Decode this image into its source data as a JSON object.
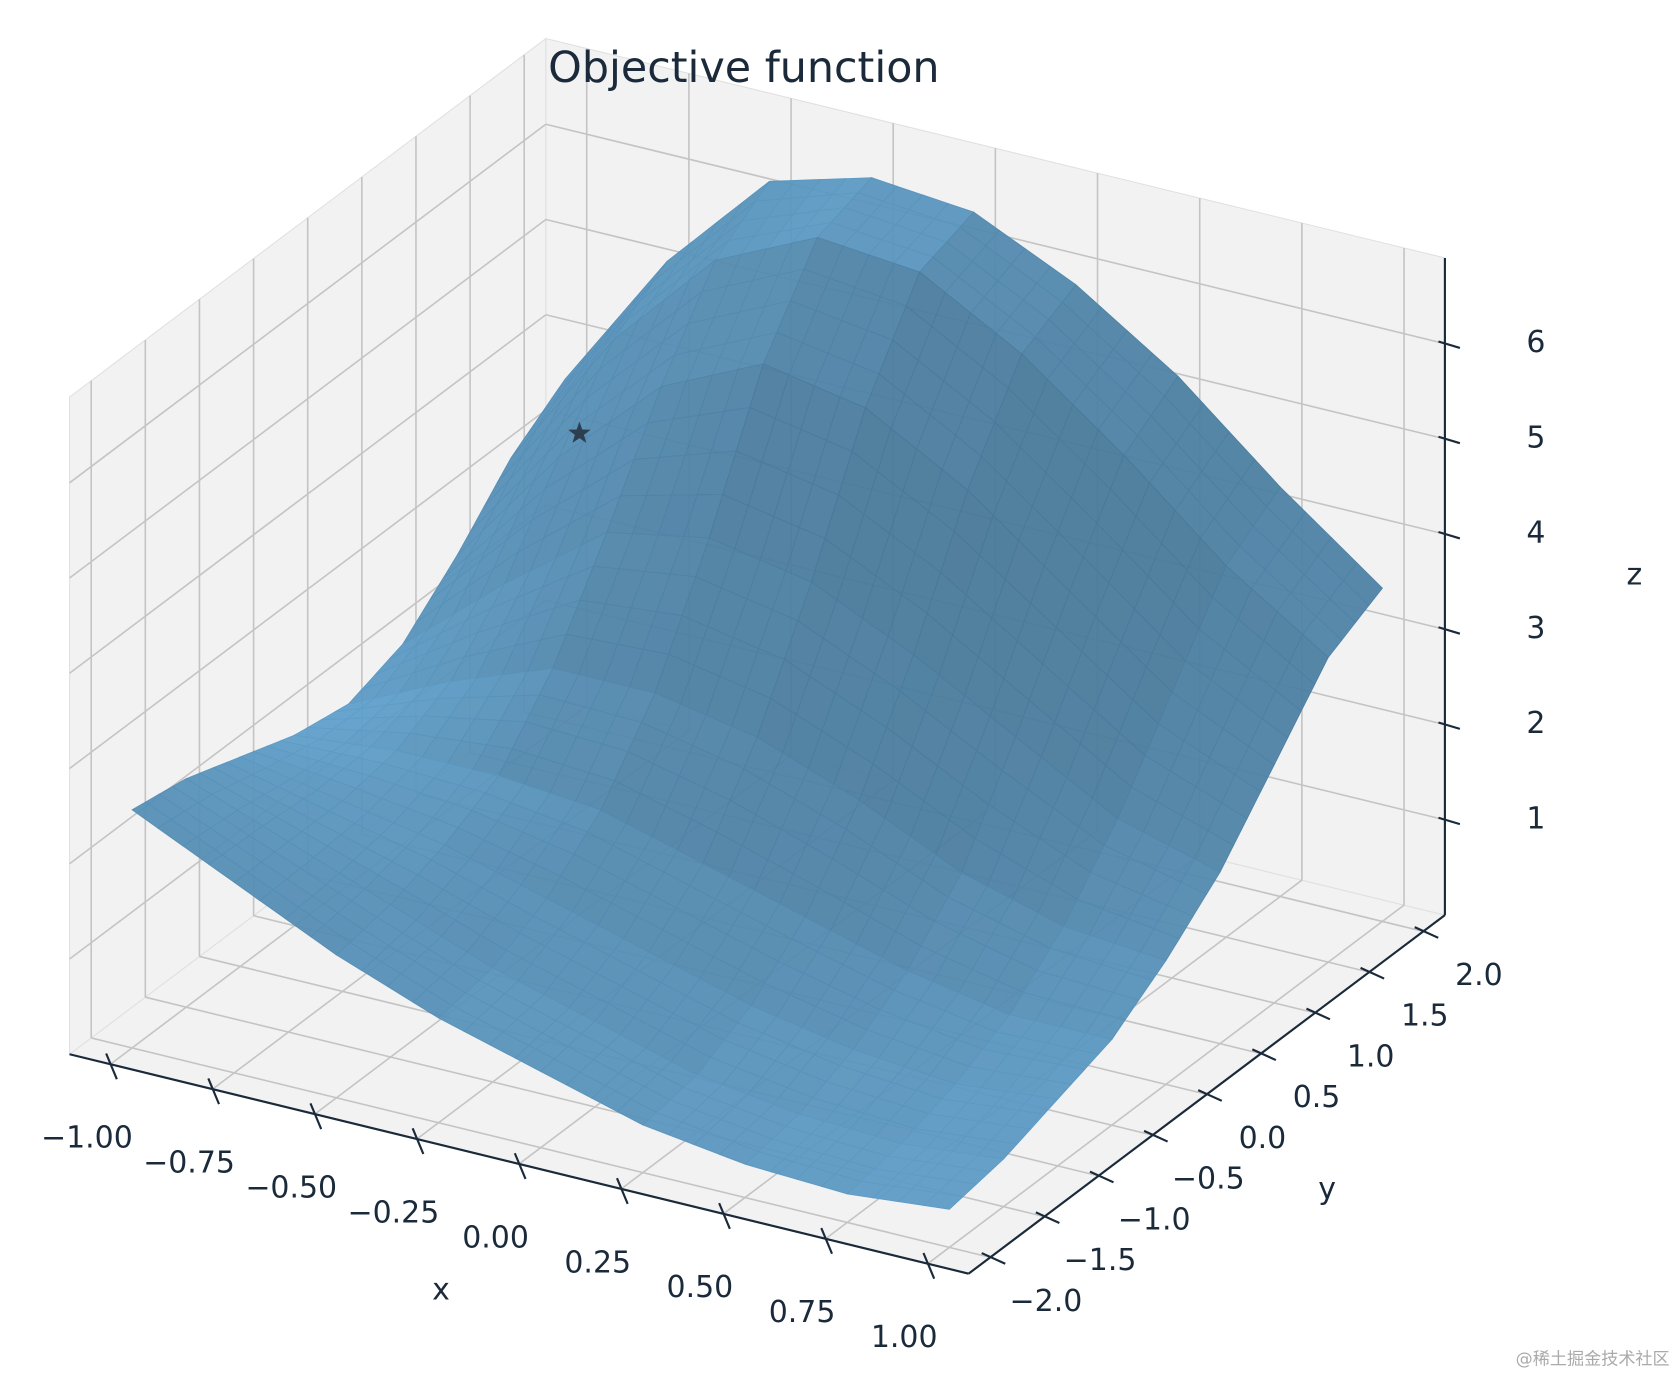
{
  "chart_data": {
    "type": "surface",
    "title": "Objective function",
    "x_label": "x",
    "y_label": "y",
    "z_label": "z",
    "x": [
      -1,
      -0.75,
      -0.5,
      -0.25,
      0,
      0.25,
      0.5,
      0.75,
      1
    ],
    "y": [
      -2,
      -1.5,
      -1,
      -0.5,
      0,
      0.5,
      1,
      1.5,
      2
    ],
    "z": [
      [
        2.5,
        2.0,
        1.5,
        1.1,
        0.8,
        0.5,
        0.35,
        0.3,
        0.4
      ],
      [
        2.4,
        2.0,
        1.6,
        1.2,
        0.9,
        0.6,
        0.45,
        0.4,
        0.5
      ],
      [
        2.2,
        2.0,
        1.8,
        1.5,
        1.2,
        0.9,
        0.7,
        0.6,
        0.7
      ],
      [
        2.0,
        2.1,
        2.1,
        2.0,
        1.7,
        1.4,
        1.1,
        0.9,
        0.9
      ],
      [
        1.9,
        2.4,
        2.8,
        2.8,
        2.6,
        2.2,
        1.7,
        1.4,
        1.3
      ],
      [
        2.1,
        3.0,
        3.8,
        4.0,
        3.8,
        3.3,
        2.7,
        2.1,
        1.8
      ],
      [
        2.6,
        3.9,
        4.9,
        5.4,
        5.2,
        4.6,
        3.8,
        3.0,
        2.5
      ],
      [
        3.2,
        4.7,
        5.8,
        6.3,
        6.2,
        5.6,
        4.8,
        3.9,
        3.2
      ],
      [
        3.6,
        5.1,
        6.2,
        6.5,
        6.4,
        5.9,
        5.2,
        4.3,
        3.5
      ]
    ],
    "color": "#5b97c0",
    "underside_color": "#28465e",
    "marker": {
      "x": -0.7,
      "y": 1.0,
      "z": 4.2,
      "symbol": "star",
      "color": "#2c3e50"
    },
    "xlim": [
      -1.1,
      1.1
    ],
    "ylim": [
      -2.2,
      2.2
    ],
    "zlim": [
      0,
      6.9
    ],
    "xticks": [
      {
        "value": -1,
        "label": "−1.00"
      },
      {
        "value": -0.75,
        "label": "−0.75"
      },
      {
        "value": -0.5,
        "label": "−0.50"
      },
      {
        "value": -0.25,
        "label": "−0.25"
      },
      {
        "value": 0,
        "label": "0.00"
      },
      {
        "value": 0.25,
        "label": "0.25"
      },
      {
        "value": 0.5,
        "label": "0.50"
      },
      {
        "value": 0.75,
        "label": "0.75"
      },
      {
        "value": 1,
        "label": "1.00"
      }
    ],
    "yticks": [
      {
        "value": -2,
        "label": "−2.0"
      },
      {
        "value": -1.5,
        "label": "−1.5"
      },
      {
        "value": -1,
        "label": "−1.0"
      },
      {
        "value": -0.5,
        "label": "−0.5"
      },
      {
        "value": 0,
        "label": "0.0"
      },
      {
        "value": 0.5,
        "label": "0.5"
      },
      {
        "value": 1,
        "label": "1.0"
      },
      {
        "value": 1.5,
        "label": "1.5"
      },
      {
        "value": 2,
        "label": "2.0"
      }
    ],
    "zticks": [
      1,
      2,
      3,
      4,
      5,
      6
    ],
    "grid": true
  },
  "watermark": "@稀土掘金技术社区"
}
